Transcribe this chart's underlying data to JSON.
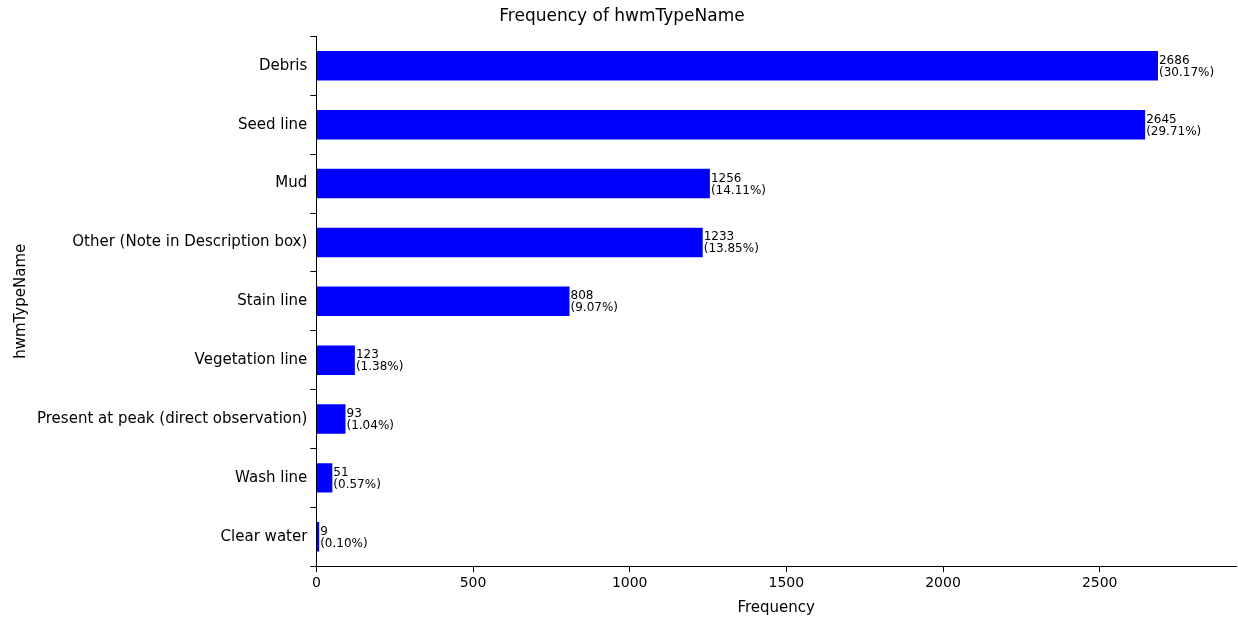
{
  "chart_data": {
    "type": "bar",
    "orientation": "horizontal",
    "title": "Frequency of hwmTypeName",
    "xlabel": "Frequency",
    "ylabel": "hwmTypeName",
    "categories": [
      "Debris",
      "Seed line",
      "Mud",
      "Other (Note in Description box)",
      "Stain line",
      "Vegetation line",
      "Present at peak (direct observation)",
      "Wash line",
      "Clear water"
    ],
    "values": [
      2686,
      2645,
      1256,
      1233,
      808,
      123,
      93,
      51,
      9
    ],
    "value_labels": [
      "2686\n(30.17%)",
      "2645\n(29.71%)",
      "1256\n(14.11%)",
      "1233\n(13.85%)",
      "808\n(9.07%)",
      "123\n(1.38%)",
      "93\n(1.04%)",
      "51\n(0.57%)",
      "9\n(0.10%)"
    ],
    "color": "#0000ff",
    "xlim": [
      0,
      2935
    ],
    "xticks": [
      0,
      500,
      1000,
      1500,
      2000,
      2500
    ],
    "grid": false,
    "legend": false
  }
}
